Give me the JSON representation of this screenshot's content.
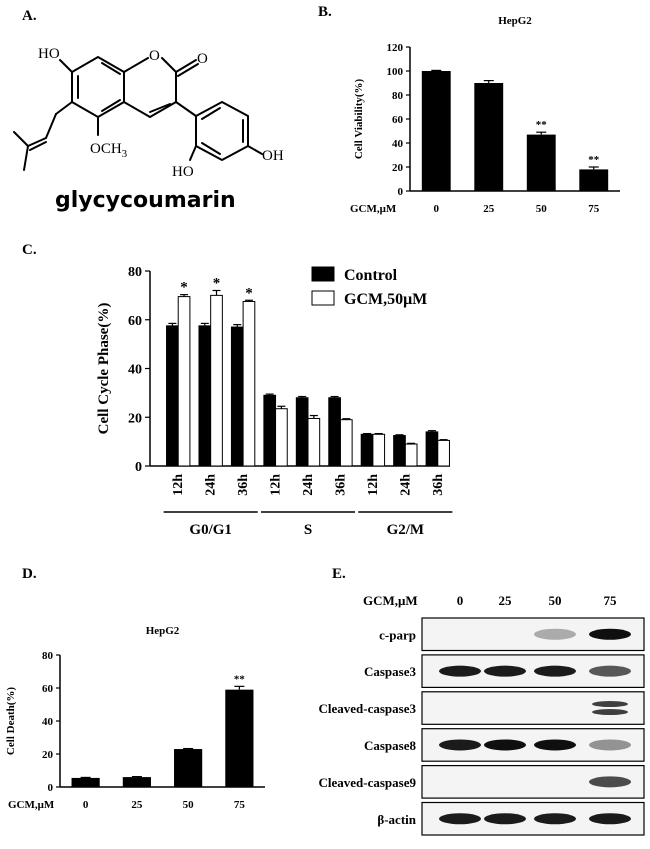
{
  "panels": {
    "a": "A.",
    "b": "B.",
    "c": "C.",
    "d": "D.",
    "e": "E."
  },
  "structure": {
    "compound_name": "glycycoumarin",
    "atoms": {
      "ho_top": "HO",
      "o_ring": "O",
      "o_carbonyl": "O",
      "och3": "OCH",
      "och3_sub": "3",
      "ho_bottom": "HO",
      "oh_right": "OH"
    }
  },
  "chart_data": [
    {
      "id": "B",
      "type": "bar",
      "title": "HepG2",
      "ylabel": "Cell Viability(%)",
      "xlabel": "GCM,μM",
      "categories": [
        "0",
        "25",
        "50",
        "75"
      ],
      "values": [
        100,
        90,
        47,
        18
      ],
      "errors": [
        0.5,
        2,
        2,
        2
      ],
      "annotations": [
        "",
        "",
        "**",
        "**"
      ],
      "ylim": [
        0,
        120
      ],
      "yticks": [
        "0",
        "20",
        "40",
        "60",
        "80",
        "100",
        "120"
      ],
      "bar_color": "#000000"
    },
    {
      "id": "C",
      "type": "bar",
      "ylabel": "Cell Cycle Phase(%)",
      "categories": [
        "12h",
        "24h",
        "36h",
        "12h",
        "24h",
        "36h",
        "12h",
        "24h",
        "36h"
      ],
      "groups": [
        {
          "label": "G0/G1",
          "span": [
            0,
            2
          ]
        },
        {
          "label": "S",
          "span": [
            3,
            5
          ]
        },
        {
          "label": "G2/M",
          "span": [
            6,
            8
          ]
        }
      ],
      "series": [
        {
          "name": "Control",
          "values": [
            57.5,
            57.5,
            57,
            29,
            28,
            28,
            13,
            12.5,
            14
          ],
          "errors": [
            1,
            1,
            1,
            0.5,
            0.5,
            0.5,
            0.3,
            0.3,
            0.5
          ],
          "color": "#000000"
        },
        {
          "name": "GCM,50μM",
          "values": [
            69.5,
            70,
            67.5,
            23.5,
            19.5,
            19,
            13,
            9,
            10.5
          ],
          "errors": [
            0.8,
            2,
            0.5,
            1,
            1.2,
            0.4,
            0.3,
            0.3,
            0.3
          ],
          "color": "#ffffff"
        }
      ],
      "annotations": [
        "*",
        "*",
        "*",
        "",
        "",
        "",
        "",
        "",
        ""
      ],
      "ylim": [
        0,
        80
      ],
      "yticks": [
        "0",
        "20",
        "40",
        "60",
        "80"
      ],
      "legend_position": "top-right"
    },
    {
      "id": "D",
      "type": "bar",
      "title": "HepG2",
      "ylabel": "Cell Death(%)",
      "xlabel": "GCM,μM",
      "categories": [
        "0",
        "25",
        "50",
        "75"
      ],
      "values": [
        5.5,
        6,
        23,
        59
      ],
      "errors": [
        0.3,
        0.3,
        0.3,
        2
      ],
      "annotations": [
        "",
        "",
        "",
        "**"
      ],
      "ylim": [
        0,
        80
      ],
      "yticks": [
        "0",
        "20",
        "40",
        "60",
        "80"
      ],
      "bar_color": "#000000"
    }
  ],
  "western_blot": {
    "header_label": "GCM,μM",
    "doses": [
      "0",
      "25",
      "50",
      "75"
    ],
    "rows": [
      {
        "label": "c-parp",
        "intensities": [
          0,
          0,
          0.35,
          1.0
        ]
      },
      {
        "label": "Caspase3",
        "intensities": [
          0.95,
          0.95,
          0.95,
          0.7
        ]
      },
      {
        "label": "Cleaved-caspase3",
        "intensities": [
          0,
          0,
          0,
          0.8
        ]
      },
      {
        "label": "Caspase8",
        "intensities": [
          0.95,
          1.0,
          1.0,
          0.45
        ]
      },
      {
        "label": "Cleaved-caspase9",
        "intensities": [
          0,
          0,
          0,
          0.75
        ]
      },
      {
        "label": "β-actin",
        "intensities": [
          0.95,
          0.95,
          0.95,
          0.95
        ]
      }
    ]
  }
}
